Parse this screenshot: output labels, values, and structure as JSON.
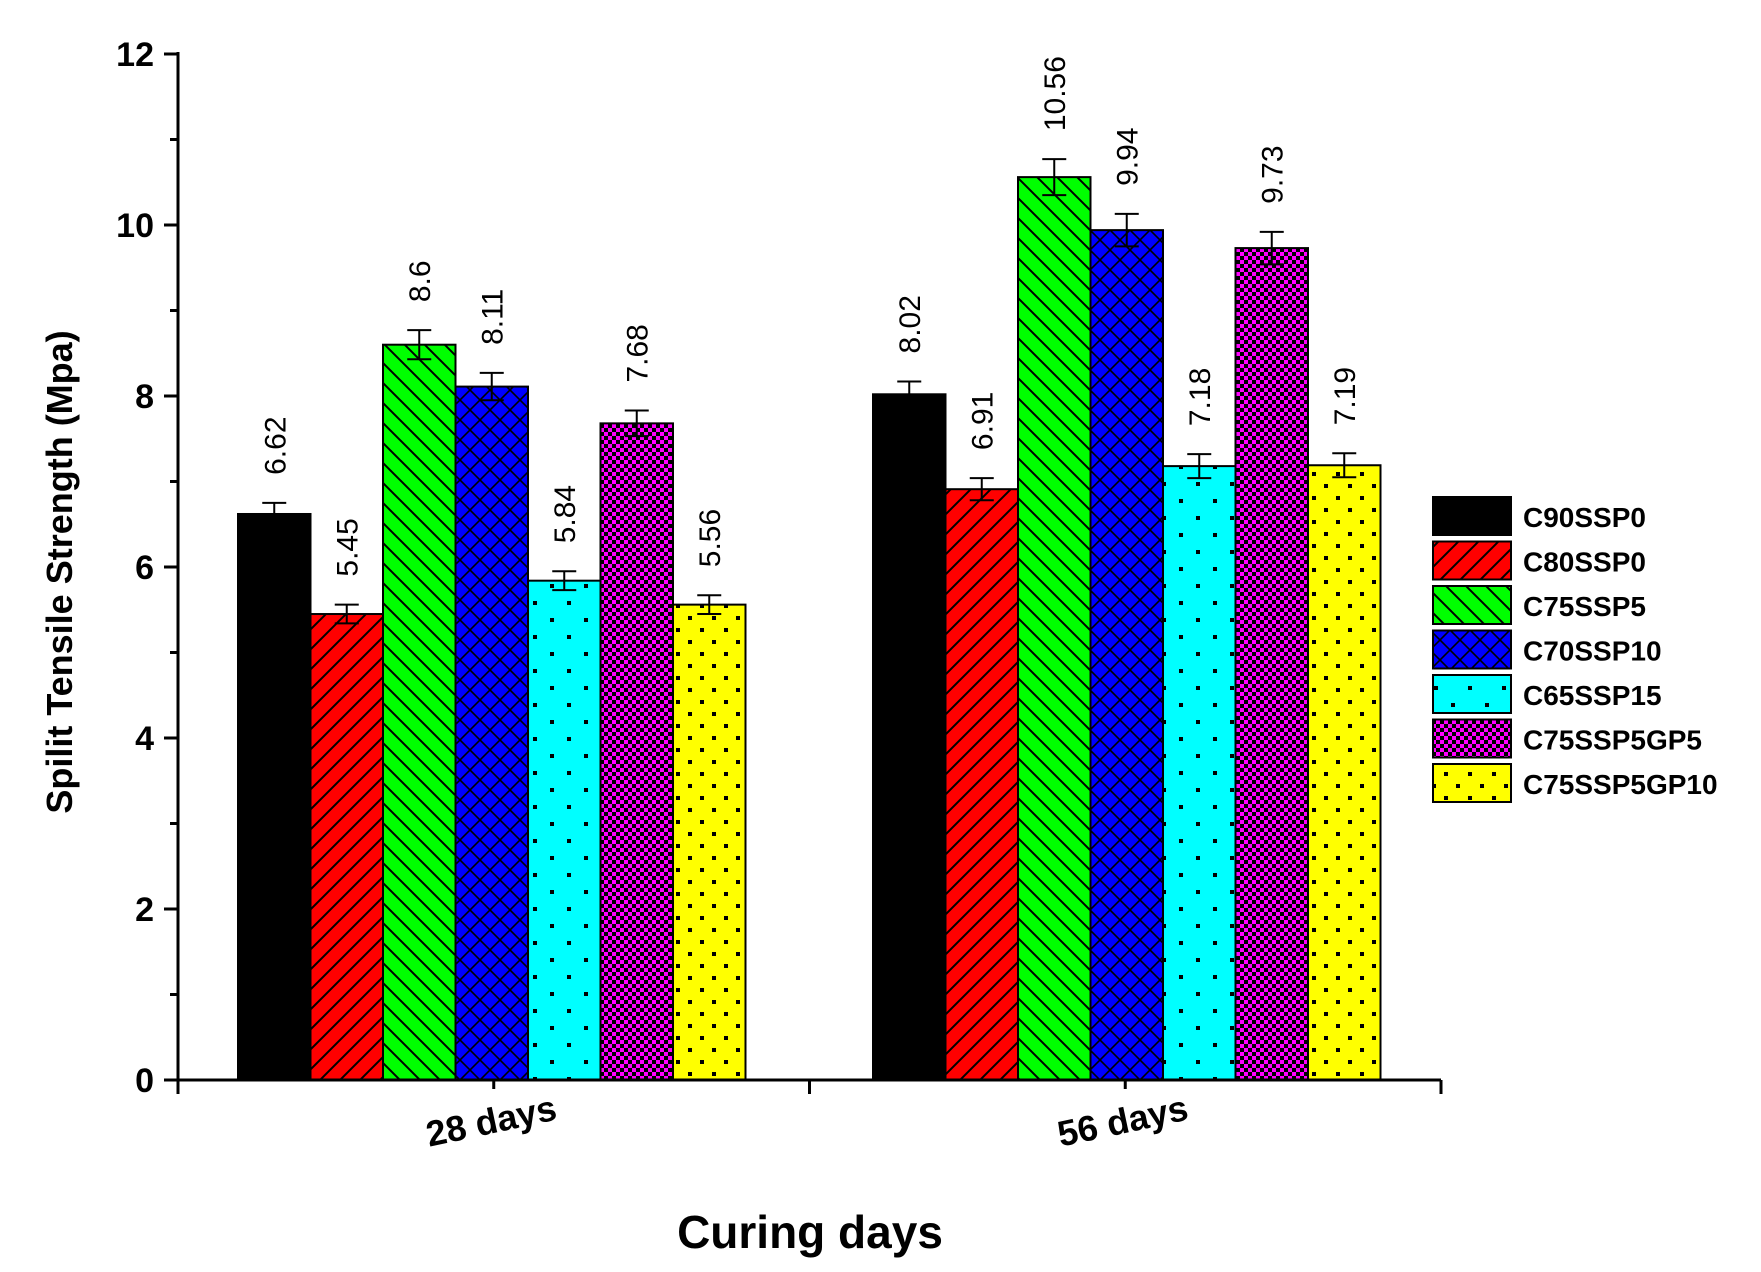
{
  "chart_data": {
    "type": "bar",
    "xlabel": "Curing days",
    "ylabel": "Spilit Tensile Strength (Mpa)",
    "ylim": [
      0,
      12
    ],
    "yticks": [
      0,
      2,
      4,
      6,
      8,
      10,
      12
    ],
    "categories": [
      "28 days",
      "56 days"
    ],
    "legend_position": "right",
    "series": [
      {
        "name": "C90SSP0",
        "values": [
          6.62,
          8.02
        ],
        "labels": [
          "6.62",
          "8.02"
        ],
        "error": [
          0.13,
          0.15
        ],
        "color": "#000000",
        "pattern": "solid"
      },
      {
        "name": "C80SSP0",
        "values": [
          5.45,
          6.91
        ],
        "labels": [
          "5.45",
          "6.91"
        ],
        "error": [
          0.11,
          0.13
        ],
        "color": "#ff0000",
        "pattern": "diag-right"
      },
      {
        "name": "C75SSP5",
        "values": [
          8.6,
          10.56
        ],
        "labels": [
          "8.6",
          "10.56"
        ],
        "error": [
          0.17,
          0.21
        ],
        "color": "#00ff00",
        "pattern": "diag-left"
      },
      {
        "name": "C70SSP10",
        "values": [
          8.11,
          9.94
        ],
        "labels": [
          "8.11",
          "9.94"
        ],
        "error": [
          0.16,
          0.19
        ],
        "color": "#0000ff",
        "pattern": "crosshatch"
      },
      {
        "name": "C65SSP15",
        "values": [
          5.84,
          7.18
        ],
        "labels": [
          "5.84",
          "7.18"
        ],
        "error": [
          0.11,
          0.14
        ],
        "color": "#00ffff",
        "pattern": "sparse-dots"
      },
      {
        "name": "C75SSP5GP5",
        "values": [
          7.68,
          9.73
        ],
        "labels": [
          "7.68",
          "9.73"
        ],
        "error": [
          0.15,
          0.19
        ],
        "color": "#ff00ff",
        "pattern": "checker"
      },
      {
        "name": "C75SSP5GP10",
        "values": [
          5.56,
          7.19
        ],
        "labels": [
          "5.56",
          "7.19"
        ],
        "error": [
          0.11,
          0.14
        ],
        "color": "#ffff00",
        "pattern": "dots"
      }
    ]
  }
}
